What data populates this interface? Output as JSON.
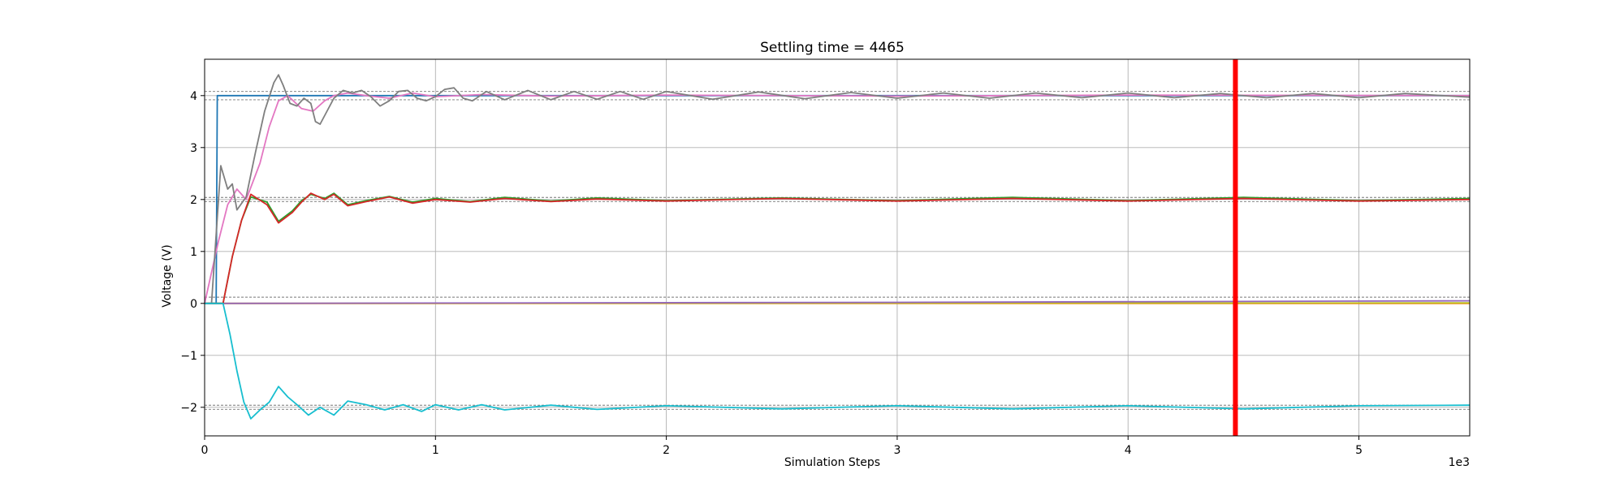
{
  "chart_data": {
    "type": "line",
    "title": "Settling time = 4465",
    "xlabel": "Simulation Steps",
    "ylabel": "Voltage (V)",
    "x_offset_text": "1e3",
    "xlim": [
      0,
      5480
    ],
    "ylim": [
      -2.55,
      4.7
    ],
    "grid": true,
    "x_ticks": [
      0,
      1000,
      2000,
      3000,
      4000,
      5000
    ],
    "x_tick_labels": [
      "0",
      "1",
      "2",
      "3",
      "4",
      "5"
    ],
    "y_ticks": [
      -2,
      -1,
      0,
      1,
      2,
      3,
      4
    ],
    "y_tick_labels": [
      "−2",
      "−1",
      "0",
      "1",
      "2",
      "3",
      "4"
    ],
    "settling_time": 4465,
    "marker_color": "#ff0000",
    "tolerance_bands": [
      4.08,
      3.92,
      2.04,
      1.96,
      0.12,
      -1.96,
      -2.04
    ],
    "series": [
      {
        "color": "#1f77b4",
        "points": [
          [
            0,
            0
          ],
          [
            50,
            0
          ],
          [
            55,
            4
          ],
          [
            5480,
            4
          ]
        ]
      },
      {
        "color": "#ff7f0e",
        "points": [
          [
            0,
            0
          ],
          [
            5480,
            0
          ]
        ]
      },
      {
        "color": "#bcbd22",
        "points": [
          [
            0,
            0
          ],
          [
            5480,
            0.01
          ]
        ]
      },
      {
        "color": "#9467bd",
        "points": [
          [
            0,
            0
          ],
          [
            3000,
            0.02
          ],
          [
            5480,
            0.05
          ]
        ]
      },
      {
        "color": "#2ca02c",
        "points": [
          [
            0,
            0
          ],
          [
            80,
            0
          ],
          [
            120,
            0.9
          ],
          [
            160,
            1.6
          ],
          [
            200,
            2.05
          ],
          [
            270,
            1.95
          ],
          [
            320,
            1.58
          ],
          [
            380,
            1.78
          ],
          [
            420,
            1.98
          ],
          [
            460,
            2.1
          ],
          [
            520,
            2.02
          ],
          [
            560,
            2.12
          ],
          [
            620,
            1.9
          ],
          [
            700,
            1.98
          ],
          [
            800,
            2.06
          ],
          [
            900,
            1.95
          ],
          [
            1000,
            2.02
          ],
          [
            1150,
            1.96
          ],
          [
            1300,
            2.04
          ],
          [
            1500,
            1.97
          ],
          [
            1700,
            2.03
          ],
          [
            2000,
            1.98
          ],
          [
            2500,
            2.03
          ],
          [
            3000,
            1.98
          ],
          [
            3500,
            2.04
          ],
          [
            4000,
            1.98
          ],
          [
            4500,
            2.04
          ],
          [
            5000,
            1.98
          ],
          [
            5480,
            2.02
          ]
        ]
      },
      {
        "color": "#d62728",
        "points": [
          [
            0,
            0
          ],
          [
            80,
            0
          ],
          [
            120,
            0.9
          ],
          [
            160,
            1.6
          ],
          [
            200,
            2.1
          ],
          [
            270,
            1.9
          ],
          [
            320,
            1.55
          ],
          [
            380,
            1.75
          ],
          [
            420,
            1.95
          ],
          [
            460,
            2.12
          ],
          [
            520,
            2.0
          ],
          [
            560,
            2.1
          ],
          [
            620,
            1.88
          ],
          [
            700,
            1.96
          ],
          [
            800,
            2.05
          ],
          [
            900,
            1.93
          ],
          [
            1000,
            2.0
          ],
          [
            1150,
            1.95
          ],
          [
            1300,
            2.02
          ],
          [
            1500,
            1.96
          ],
          [
            1700,
            2.01
          ],
          [
            2000,
            1.97
          ],
          [
            2500,
            2.02
          ],
          [
            3000,
            1.97
          ],
          [
            3500,
            2.02
          ],
          [
            4000,
            1.97
          ],
          [
            4500,
            2.02
          ],
          [
            5000,
            1.97
          ],
          [
            5480,
            2.0
          ]
        ]
      },
      {
        "color": "#e377c2",
        "points": [
          [
            0,
            0
          ],
          [
            60,
            1.2
          ],
          [
            100,
            1.9
          ],
          [
            140,
            2.2
          ],
          [
            180,
            2.0
          ],
          [
            240,
            2.7
          ],
          [
            280,
            3.4
          ],
          [
            320,
            3.9
          ],
          [
            360,
            4.0
          ],
          [
            420,
            3.75
          ],
          [
            470,
            3.7
          ],
          [
            520,
            3.9
          ],
          [
            560,
            4.0
          ],
          [
            620,
            4.05
          ],
          [
            700,
            4.0
          ],
          [
            800,
            3.95
          ],
          [
            900,
            4.05
          ],
          [
            1000,
            3.98
          ],
          [
            1200,
            4.02
          ],
          [
            1500,
            3.99
          ],
          [
            2000,
            4.01
          ],
          [
            3000,
            3.99
          ],
          [
            4000,
            4.01
          ],
          [
            5480,
            4.0
          ]
        ]
      },
      {
        "color": "#7f7f7f",
        "points": [
          [
            0,
            0
          ],
          [
            30,
            0
          ],
          [
            70,
            2.65
          ],
          [
            100,
            2.2
          ],
          [
            120,
            2.3
          ],
          [
            140,
            1.8
          ],
          [
            180,
            2.05
          ],
          [
            220,
            2.9
          ],
          [
            260,
            3.7
          ],
          [
            300,
            4.25
          ],
          [
            320,
            4.4
          ],
          [
            340,
            4.2
          ],
          [
            370,
            3.85
          ],
          [
            400,
            3.8
          ],
          [
            430,
            3.95
          ],
          [
            460,
            3.85
          ],
          [
            480,
            3.5
          ],
          [
            500,
            3.45
          ],
          [
            530,
            3.7
          ],
          [
            560,
            3.95
          ],
          [
            600,
            4.1
          ],
          [
            640,
            4.05
          ],
          [
            680,
            4.1
          ],
          [
            720,
            3.98
          ],
          [
            760,
            3.8
          ],
          [
            800,
            3.9
          ],
          [
            840,
            4.08
          ],
          [
            880,
            4.1
          ],
          [
            920,
            3.95
          ],
          [
            960,
            3.9
          ],
          [
            1000,
            3.98
          ],
          [
            1040,
            4.12
          ],
          [
            1080,
            4.15
          ],
          [
            1120,
            3.95
          ],
          [
            1160,
            3.9
          ],
          [
            1220,
            4.08
          ],
          [
            1300,
            3.92
          ],
          [
            1400,
            4.1
          ],
          [
            1500,
            3.92
          ],
          [
            1600,
            4.08
          ],
          [
            1700,
            3.93
          ],
          [
            1800,
            4.08
          ],
          [
            1900,
            3.93
          ],
          [
            2000,
            4.08
          ],
          [
            2200,
            3.93
          ],
          [
            2400,
            4.07
          ],
          [
            2600,
            3.94
          ],
          [
            2800,
            4.06
          ],
          [
            3000,
            3.95
          ],
          [
            3200,
            4.05
          ],
          [
            3400,
            3.95
          ],
          [
            3600,
            4.05
          ],
          [
            3800,
            3.96
          ],
          [
            4000,
            4.05
          ],
          [
            4200,
            3.96
          ],
          [
            4400,
            4.04
          ],
          [
            4600,
            3.96
          ],
          [
            4800,
            4.04
          ],
          [
            5000,
            3.96
          ],
          [
            5200,
            4.04
          ],
          [
            5480,
            3.97
          ]
        ]
      },
      {
        "color": "#17becf",
        "points": [
          [
            0,
            0
          ],
          [
            80,
            0
          ],
          [
            110,
            -0.6
          ],
          [
            140,
            -1.3
          ],
          [
            170,
            -1.9
          ],
          [
            200,
            -2.22
          ],
          [
            240,
            -2.05
          ],
          [
            280,
            -1.9
          ],
          [
            320,
            -1.6
          ],
          [
            360,
            -1.8
          ],
          [
            400,
            -1.95
          ],
          [
            450,
            -2.15
          ],
          [
            500,
            -2.0
          ],
          [
            560,
            -2.15
          ],
          [
            620,
            -1.88
          ],
          [
            700,
            -1.95
          ],
          [
            780,
            -2.05
          ],
          [
            860,
            -1.95
          ],
          [
            940,
            -2.08
          ],
          [
            1000,
            -1.95
          ],
          [
            1100,
            -2.05
          ],
          [
            1200,
            -1.95
          ],
          [
            1300,
            -2.05
          ],
          [
            1500,
            -1.96
          ],
          [
            1700,
            -2.04
          ],
          [
            2000,
            -1.97
          ],
          [
            2500,
            -2.03
          ],
          [
            3000,
            -1.97
          ],
          [
            3500,
            -2.03
          ],
          [
            4000,
            -1.97
          ],
          [
            4500,
            -2.03
          ],
          [
            5000,
            -1.97
          ],
          [
            5480,
            -1.96
          ]
        ]
      }
    ]
  }
}
